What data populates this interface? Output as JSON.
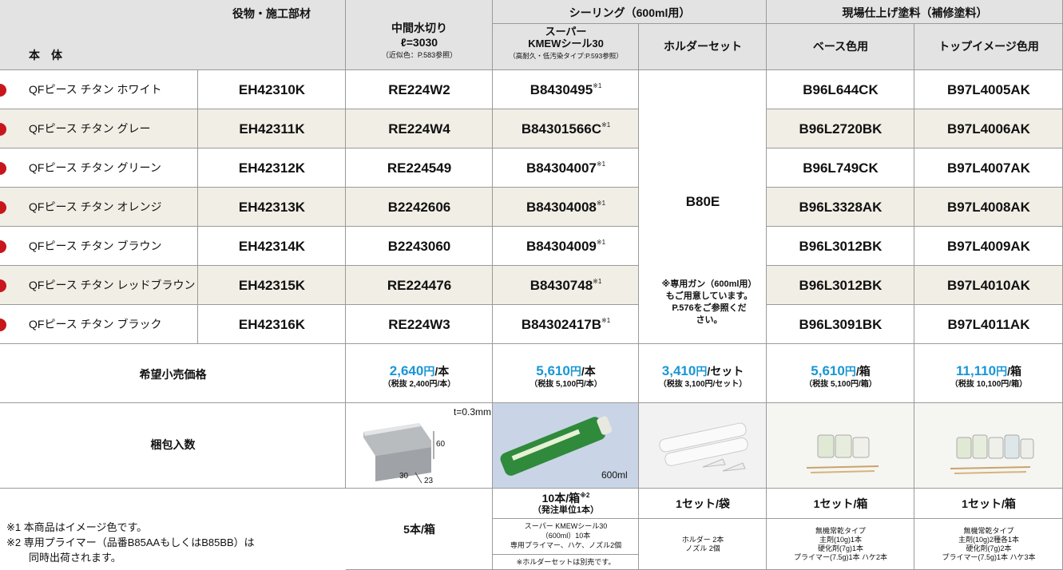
{
  "header": {
    "group_label": "役物・施工部材",
    "main_label": "本　体",
    "drain": {
      "title": "中間水切り",
      "length": "ℓ=3030",
      "note": "（近似色：P.583参照）"
    },
    "sealing": {
      "title": "シーリング（600ml用）",
      "kmew": {
        "line1": "スーパー",
        "line2": "KMEWシール30",
        "note": "（高耐久・低汚染タイプ:P.593参照）"
      },
      "holder": "ホルダーセット"
    },
    "paint": {
      "title": "現場仕上げ塗料（補修塗料）",
      "base": "ベース色用",
      "top": "トップイメージ色用"
    }
  },
  "rows": [
    {
      "name": "QFピース チタン ホワイト",
      "code": "EH42310K",
      "drain": "RE224W2",
      "sealant": "B8430495",
      "mark": "※1",
      "base": "B96L644CK",
      "top": "B97L4005AK"
    },
    {
      "name": "QFピース チタン グレー",
      "code": "EH42311K",
      "drain": "RE224W4",
      "sealant": "B84301566C",
      "mark": "※1",
      "base": "B96L2720BK",
      "top": "B97L4006AK"
    },
    {
      "name": "QFピース チタン グリーン",
      "code": "EH42312K",
      "drain": "RE224549",
      "sealant": "B84304007",
      "mark": "※1",
      "base": "B96L749CK",
      "top": "B97L4007AK"
    },
    {
      "name": "QFピース チタン オレンジ",
      "code": "EH42313K",
      "drain": "B2242606",
      "sealant": "B84304008",
      "mark": "※1",
      "base": "B96L3328AK",
      "top": "B97L4008AK"
    },
    {
      "name": "QFピース チタン ブラウン",
      "code": "EH42314K",
      "drain": "B2243060",
      "sealant": "B84304009",
      "mark": "※1",
      "base": "B96L3012BK",
      "top": "B97L4009AK"
    },
    {
      "name": "QFピース チタン レッドブラウン",
      "code": "EH42315K",
      "drain": "RE224476",
      "sealant": "B8430748",
      "mark": "※1",
      "base": "B96L3012BK",
      "top": "B97L4010AK"
    },
    {
      "name": "QFピース チタン ブラック",
      "code": "EH42316K",
      "drain": "RE224W3",
      "sealant": "B84302417B",
      "mark": "※1",
      "base": "B96L3091BK",
      "top": "B97L4011AK"
    }
  ],
  "holder": {
    "code": "B80E",
    "note": [
      "※専用ガン（600ml用）",
      "もご用意しています。",
      "P.576をご参照くだ",
      "さい。"
    ]
  },
  "price": {
    "label": "希望小売価格",
    "items": [
      {
        "amount": "2,640",
        "unit": "円",
        "per": "/本",
        "tax": "（税抜 2,400円/本）"
      },
      {
        "amount": "5,610",
        "unit": "円",
        "per": "/本",
        "tax": "（税抜 5,100円/本）"
      },
      {
        "amount": "3,410",
        "unit": "円",
        "per": "/セット",
        "tax": "（税抜 3,100円/セット）"
      },
      {
        "amount": "5,610",
        "unit": "円",
        "per": "/箱",
        "tax": "（税抜 5,100円/箱）"
      },
      {
        "amount": "11,110",
        "unit": "円",
        "per": "/箱",
        "tax": "（税抜 10,100円/箱）"
      }
    ]
  },
  "packing": {
    "label": "梱包入数",
    "image_labels": {
      "thickness": "t=0.3mm",
      "height": "60",
      "width": "30",
      "depth": "23",
      "volume": "600ml"
    },
    "drain": "5本/箱",
    "kmew": {
      "count": "10本/箱",
      "mark": "※2",
      "sub": "（発注単位1本）",
      "details": [
        "スーパー KMEWシール30",
        "（600ml）10本",
        "専用プライマー、ハケ、ノズル2個"
      ],
      "note": "※ホルダーセットは別売です。"
    },
    "holder": {
      "count": "1セット/袋",
      "details": [
        "ホルダー 2本",
        "ノズル 2個"
      ]
    },
    "base": {
      "count": "1セット/箱",
      "details": [
        "無機常乾タイプ",
        "主剤(10g)1本",
        "硬化剤(7g)1本",
        "プライマー(7.5g)1本 ハケ2本"
      ]
    },
    "top": {
      "count": "1セット/箱",
      "details": [
        "無機常乾タイプ",
        "主剤(10g)2種各1本",
        "硬化剤(7g)2本",
        "プライマー(7.5g)1本 ハケ3本"
      ]
    }
  },
  "footnotes": [
    "※1 本商品はイメージ色です。",
    "※2 専用プライマー（品番B85AAもしくはB85BB）は",
    "同時出荷されます。"
  ]
}
